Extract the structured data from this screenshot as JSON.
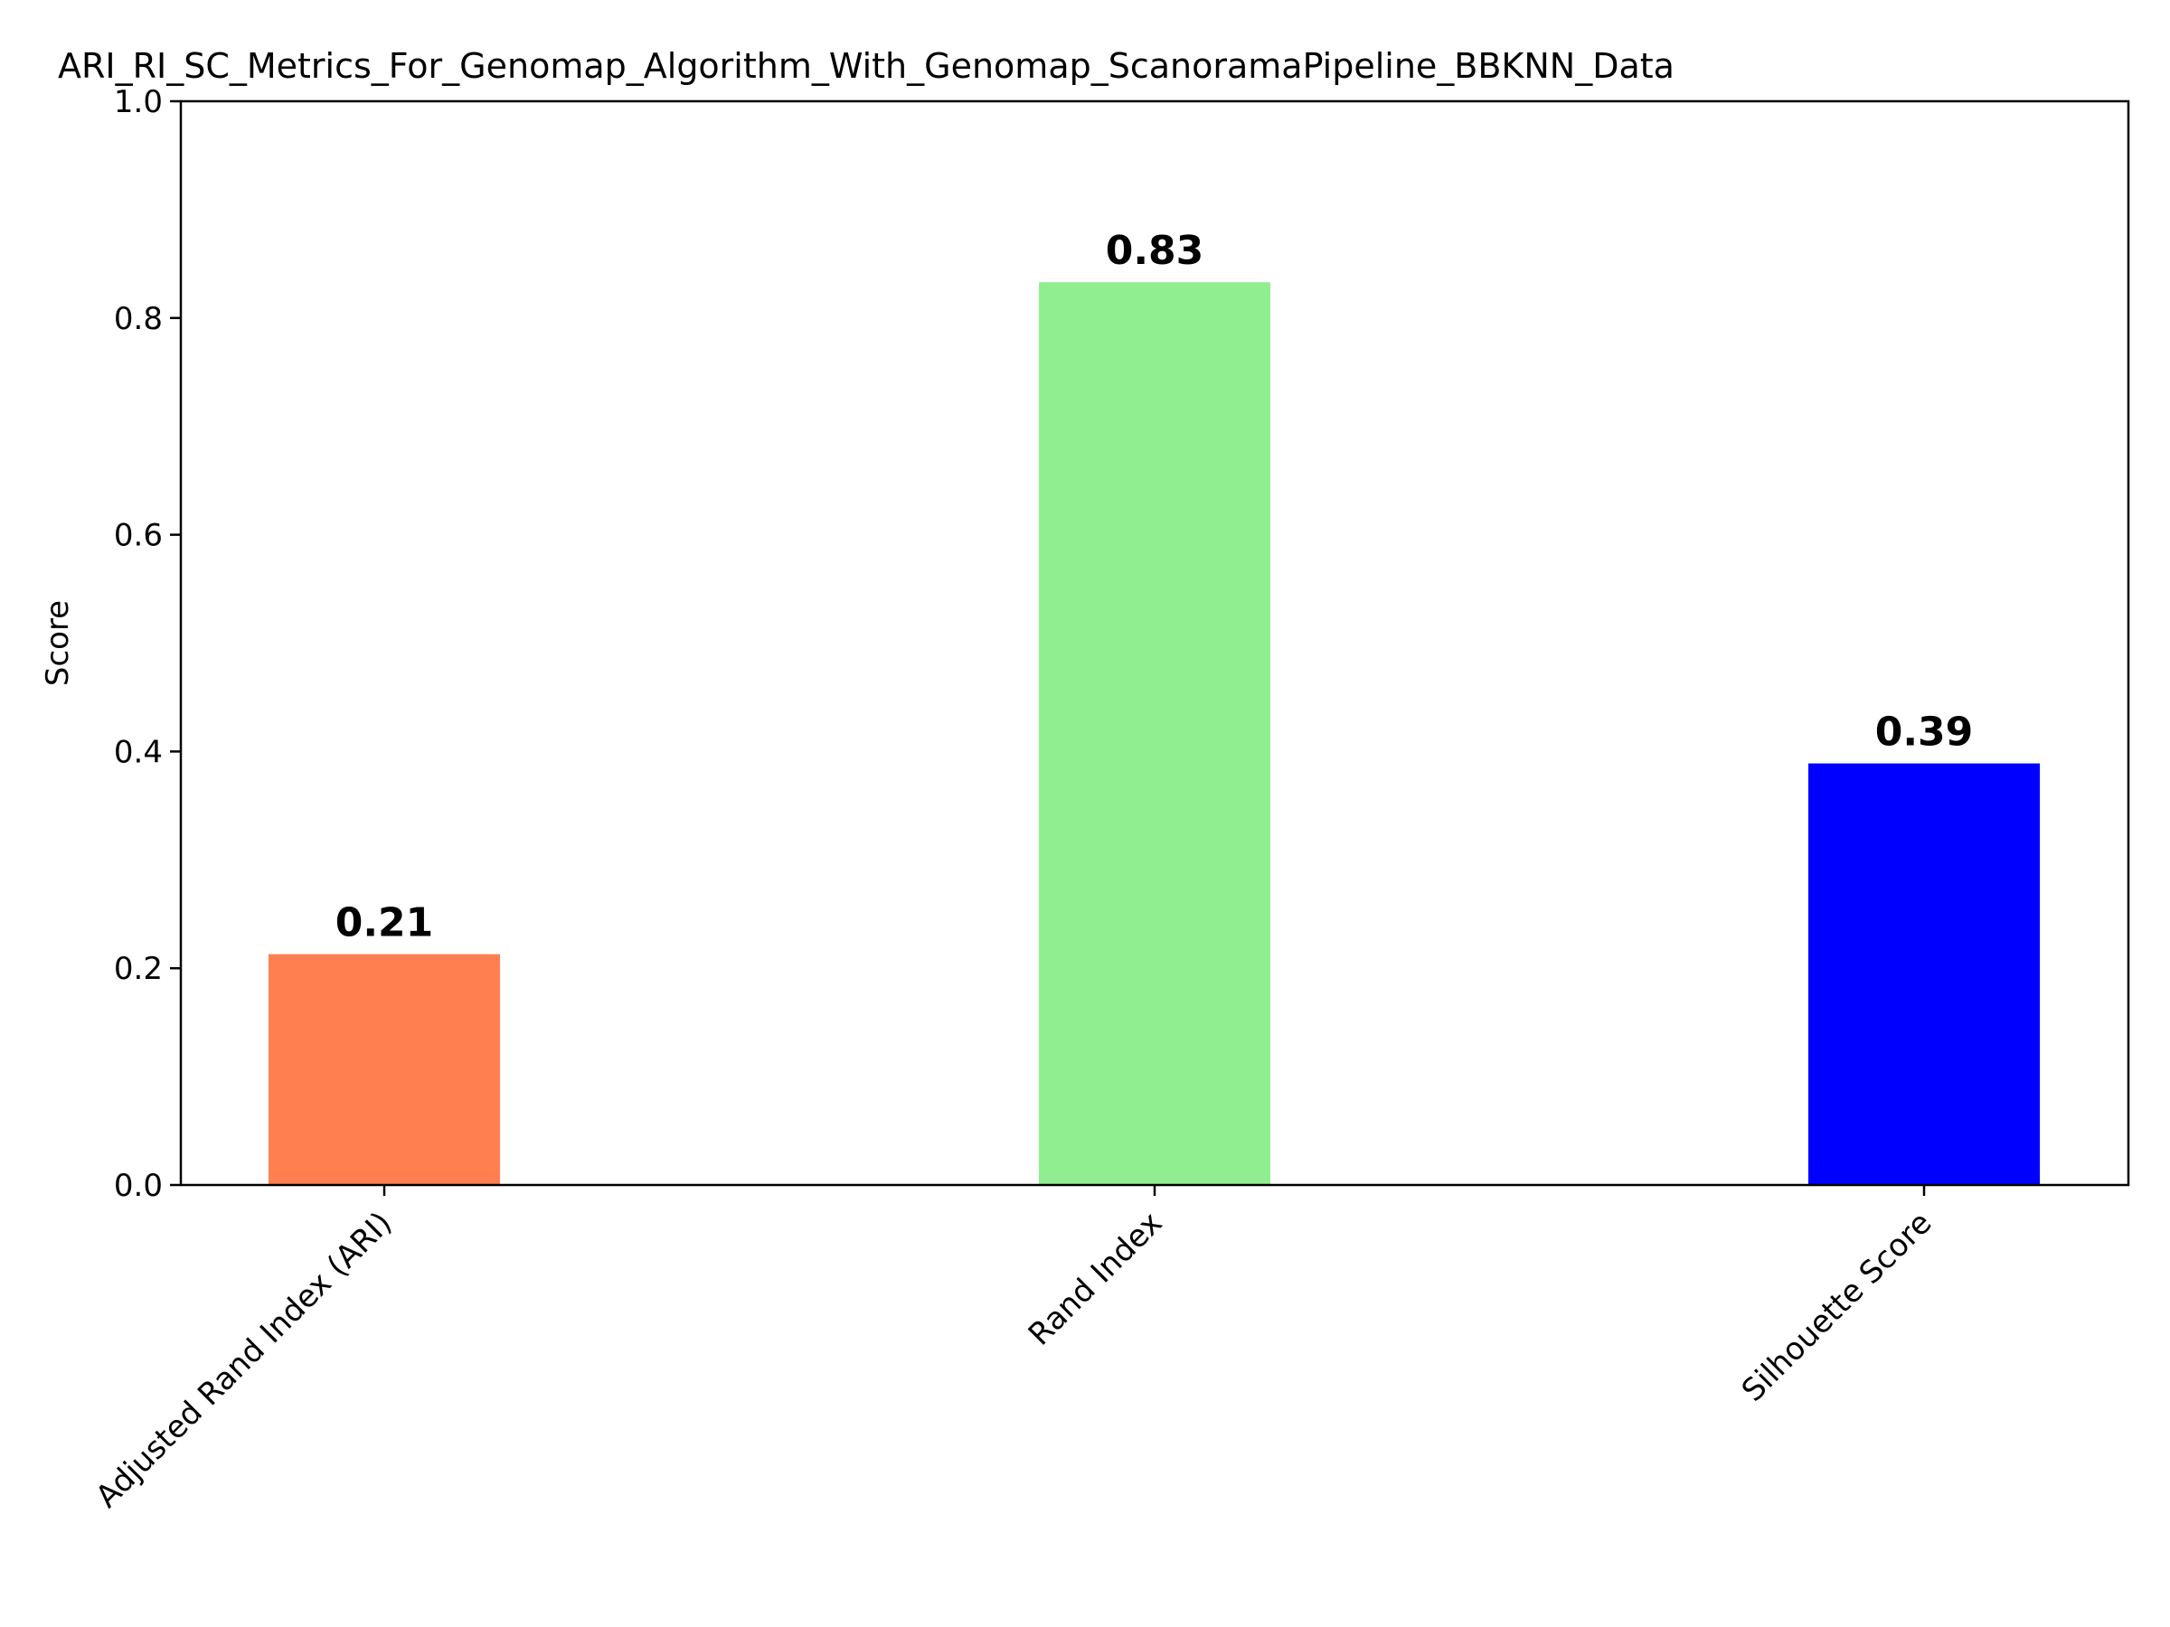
{
  "chart_data": {
    "type": "bar",
    "title": "ARI_RI_SC_Metrics_For_Genomap_Algorithm_With_Genomap_ScanoramaPipeline_BBKNN_Data",
    "xlabel": "",
    "ylabel": "Score",
    "ylim": [
      0,
      1
    ],
    "yticks": [
      "0.0",
      "0.2",
      "0.4",
      "0.6",
      "0.8",
      "1.0"
    ],
    "categories": [
      "Adjusted Rand Index (ARI)",
      "Rand Index",
      "Silhouette Score"
    ],
    "values": [
      0.213,
      0.833,
      0.389
    ],
    "data_labels": [
      "0.21",
      "0.83",
      "0.39"
    ],
    "colors": [
      "#ff7f50",
      "#90ee90",
      "#0000ff"
    ],
    "grid": false,
    "legend": "none"
  }
}
